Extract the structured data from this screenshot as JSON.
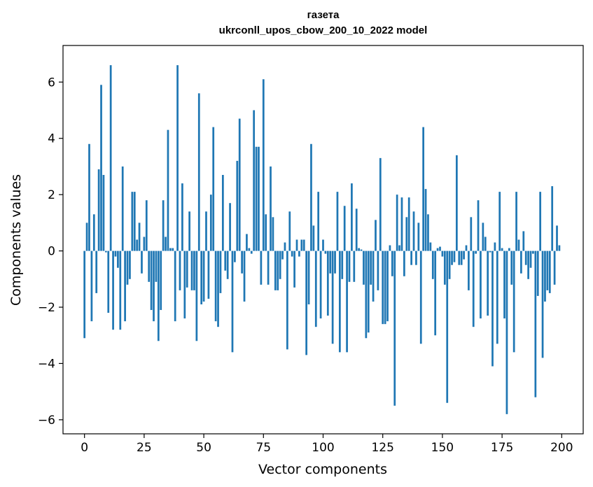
{
  "chart_data": {
    "type": "bar",
    "title_lines": [
      "газета",
      "ukrconll_upos_cbow_200_10_2022 model"
    ],
    "xlabel": "Vector components",
    "ylabel": "Components values",
    "xlim": [
      -9,
      209
    ],
    "ylim": [
      -6.5,
      7.3
    ],
    "xticks": [
      0,
      25,
      50,
      75,
      100,
      125,
      150,
      175,
      200
    ],
    "yticks": [
      -6,
      -4,
      -2,
      0,
      2,
      4,
      6
    ],
    "xtick_labels": [
      "0",
      "25",
      "50",
      "75",
      "100",
      "125",
      "150",
      "175",
      "200"
    ],
    "ytick_labels": [
      "−6",
      "−4",
      "−2",
      "0",
      "2",
      "4",
      "6"
    ],
    "bar_color": "#1f77b4",
    "grid": false,
    "x": [
      0,
      1,
      2,
      3,
      4,
      5,
      6,
      7,
      8,
      9,
      10,
      11,
      12,
      13,
      14,
      15,
      16,
      17,
      18,
      19,
      20,
      21,
      22,
      23,
      24,
      25,
      26,
      27,
      28,
      29,
      30,
      31,
      32,
      33,
      34,
      35,
      36,
      37,
      38,
      39,
      40,
      41,
      42,
      43,
      44,
      45,
      46,
      47,
      48,
      49,
      50,
      51,
      52,
      53,
      54,
      55,
      56,
      57,
      58,
      59,
      60,
      61,
      62,
      63,
      64,
      65,
      66,
      67,
      68,
      69,
      70,
      71,
      72,
      73,
      74,
      75,
      76,
      77,
      78,
      79,
      80,
      81,
      82,
      83,
      84,
      85,
      86,
      87,
      88,
      89,
      90,
      91,
      92,
      93,
      94,
      95,
      96,
      97,
      98,
      99,
      100,
      101,
      102,
      103,
      104,
      105,
      106,
      107,
      108,
      109,
      110,
      111,
      112,
      113,
      114,
      115,
      116,
      117,
      118,
      119,
      120,
      121,
      122,
      123,
      124,
      125,
      126,
      127,
      128,
      129,
      130,
      131,
      132,
      133,
      134,
      135,
      136,
      137,
      138,
      139,
      140,
      141,
      142,
      143,
      144,
      145,
      146,
      147,
      148,
      149,
      150,
      151,
      152,
      153,
      154,
      155,
      156,
      157,
      158,
      159,
      160,
      161,
      162,
      163,
      164,
      165,
      166,
      167,
      168,
      169,
      170,
      171,
      172,
      173,
      174,
      175,
      176,
      177,
      178,
      179,
      180,
      181,
      182,
      183,
      184,
      185,
      186,
      187,
      188,
      189,
      190,
      191,
      192,
      193,
      194,
      195,
      196,
      197,
      198,
      199
    ],
    "values": [
      -3.1,
      1.0,
      3.8,
      -2.5,
      1.3,
      -1.5,
      2.9,
      5.9,
      2.7,
      -0.05,
      -2.2,
      6.6,
      -2.8,
      -0.2,
      -0.6,
      -2.8,
      3.0,
      -2.5,
      -1.2,
      -1.0,
      2.1,
      2.1,
      0.4,
      1.0,
      -0.8,
      0.5,
      1.8,
      -1.1,
      -2.1,
      -2.5,
      -1.1,
      -3.2,
      -2.1,
      1.8,
      0.5,
      4.3,
      0.1,
      0.1,
      -2.5,
      6.6,
      -1.4,
      2.4,
      -2.4,
      -1.3,
      1.4,
      -1.4,
      -1.4,
      -3.2,
      5.6,
      -1.9,
      -1.8,
      1.4,
      -1.7,
      2.0,
      4.4,
      -2.5,
      -2.7,
      -1.5,
      2.7,
      -0.7,
      -1.0,
      1.7,
      -3.6,
      -0.4,
      3.2,
      4.7,
      -0.8,
      -1.8,
      0.6,
      0.1,
      -0.1,
      5.0,
      3.7,
      3.7,
      -1.2,
      6.1,
      1.3,
      -1.2,
      3.0,
      1.2,
      -1.4,
      -1.4,
      -1.0,
      -0.3,
      0.3,
      -3.5,
      1.4,
      -0.2,
      -1.3,
      0.4,
      -0.2,
      0.4,
      0.4,
      -3.7,
      -1.9,
      3.8,
      0.9,
      -2.7,
      2.1,
      -2.4,
      0.4,
      -0.1,
      -2.3,
      -0.8,
      -3.3,
      -0.8,
      2.1,
      -3.6,
      -1.0,
      1.6,
      -3.6,
      -1.1,
      2.4,
      -1.1,
      1.5,
      0.1,
      0.05,
      -1.2,
      -3.1,
      -2.9,
      -1.2,
      -1.8,
      1.1,
      -1.4,
      3.3,
      -2.6,
      -2.6,
      -2.5,
      0.2,
      -0.9,
      -5.5,
      2.0,
      0.2,
      1.9,
      -0.9,
      1.2,
      1.9,
      -0.5,
      1.4,
      -0.5,
      1.0,
      -3.3,
      4.4,
      2.2,
      1.3,
      0.3,
      -1.0,
      -3.0,
      0.1,
      0.15,
      -0.2,
      -1.2,
      -5.4,
      -1.0,
      -0.5,
      -0.4,
      3.4,
      -0.5,
      -0.5,
      -0.3,
      0.2,
      -1.4,
      1.2,
      -2.7,
      -0.1,
      1.8,
      -2.4,
      1.0,
      0.5,
      -2.3,
      -0.05,
      -4.1,
      0.3,
      -3.3,
      2.1,
      0.1,
      -2.4,
      -5.8,
      0.1,
      -1.2,
      -3.6,
      2.1,
      0.4,
      -0.8,
      0.7,
      -0.5,
      -1.0,
      -0.6,
      -0.1,
      -5.2,
      -1.6,
      2.1,
      -3.8,
      -1.8,
      -1.4,
      -1.5,
      2.3,
      -1.2,
      0.9,
      0.2
    ]
  }
}
